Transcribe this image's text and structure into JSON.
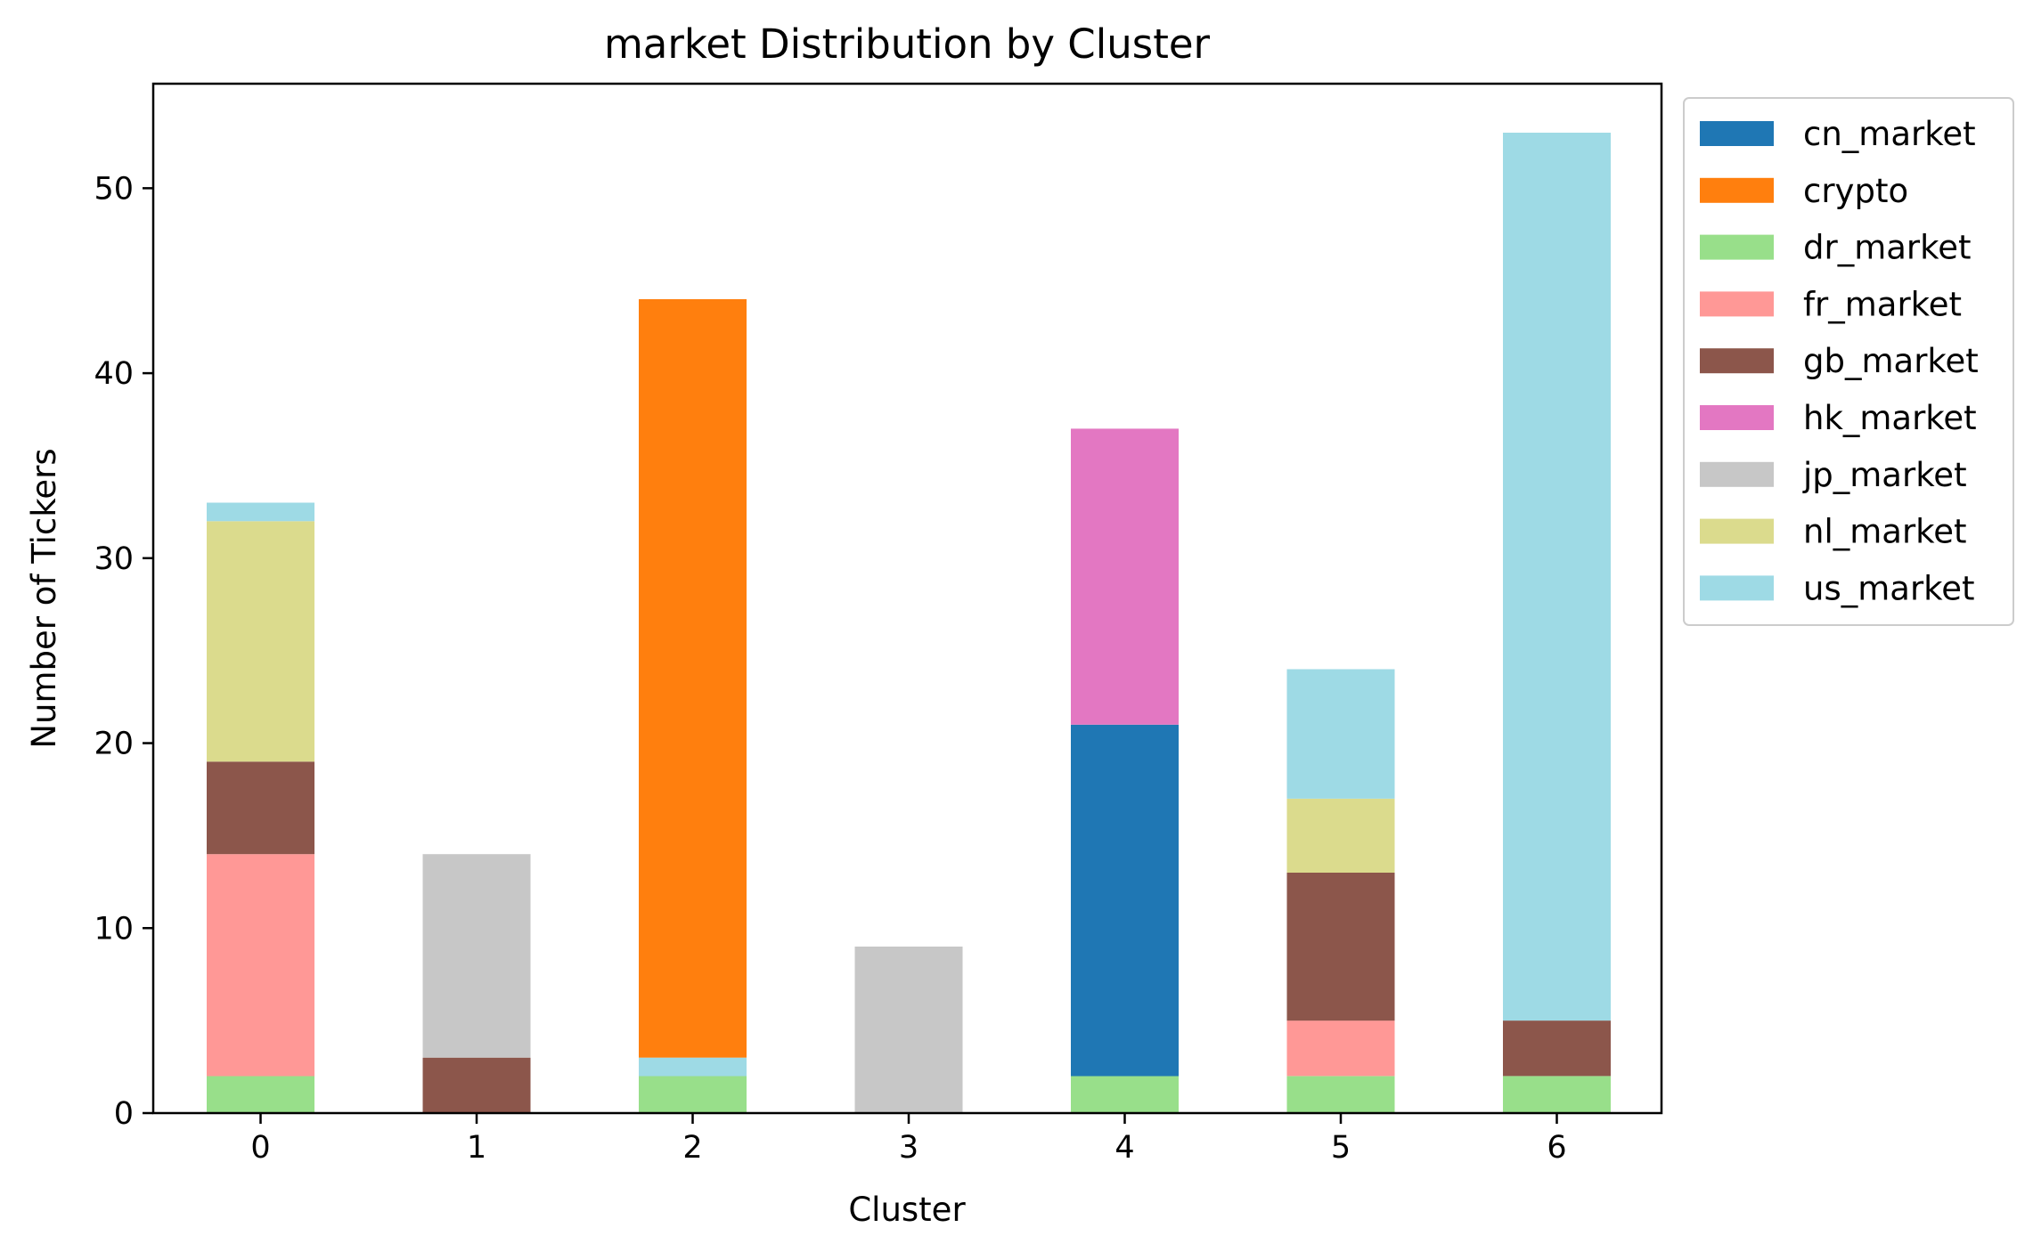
{
  "chart_data": {
    "type": "bar",
    "stacked": true,
    "title": "market Distribution by Cluster",
    "xlabel": "Cluster",
    "ylabel": "Number of Tickers",
    "categories": [
      "0",
      "1",
      "2",
      "3",
      "4",
      "5",
      "6"
    ],
    "ylim": [
      0,
      55.65
    ],
    "yticks": [
      0,
      10,
      20,
      30,
      40,
      50
    ],
    "legend_placement": "outside-top-right",
    "grid": false,
    "series": [
      {
        "name": "cn_market",
        "color": "#1f77b4",
        "values": [
          0,
          0,
          0,
          0,
          19,
          0,
          0
        ]
      },
      {
        "name": "crypto",
        "color": "#ff7f0e",
        "values": [
          0,
          0,
          41,
          0,
          0,
          0,
          0
        ]
      },
      {
        "name": "dr_market",
        "color": "#98df8a",
        "values": [
          2,
          0,
          2,
          0,
          2,
          2,
          2
        ]
      },
      {
        "name": "fr_market",
        "color": "#ff9896",
        "values": [
          12,
          0,
          0,
          0,
          0,
          3,
          0
        ]
      },
      {
        "name": "gb_market",
        "color": "#8c564b",
        "values": [
          5,
          3,
          0,
          0,
          0,
          8,
          3
        ]
      },
      {
        "name": "hk_market",
        "color": "#e377c2",
        "values": [
          0,
          0,
          0,
          0,
          16,
          0,
          0
        ]
      },
      {
        "name": "jp_market",
        "color": "#c7c7c7",
        "values": [
          0,
          11,
          0,
          9,
          0,
          0,
          0
        ]
      },
      {
        "name": "nl_market",
        "color": "#dbdb8d",
        "values": [
          13,
          0,
          0,
          0,
          0,
          4,
          0
        ]
      },
      {
        "name": "us_market",
        "color": "#9edae5",
        "values": [
          1,
          0,
          1,
          0,
          0,
          7,
          48
        ]
      }
    ],
    "stack_order": [
      "dr_market",
      "fr_market",
      "gb_market",
      "nl_market",
      "us_market",
      "cn_market",
      "hk_market",
      "crypto",
      "jp_market"
    ]
  }
}
